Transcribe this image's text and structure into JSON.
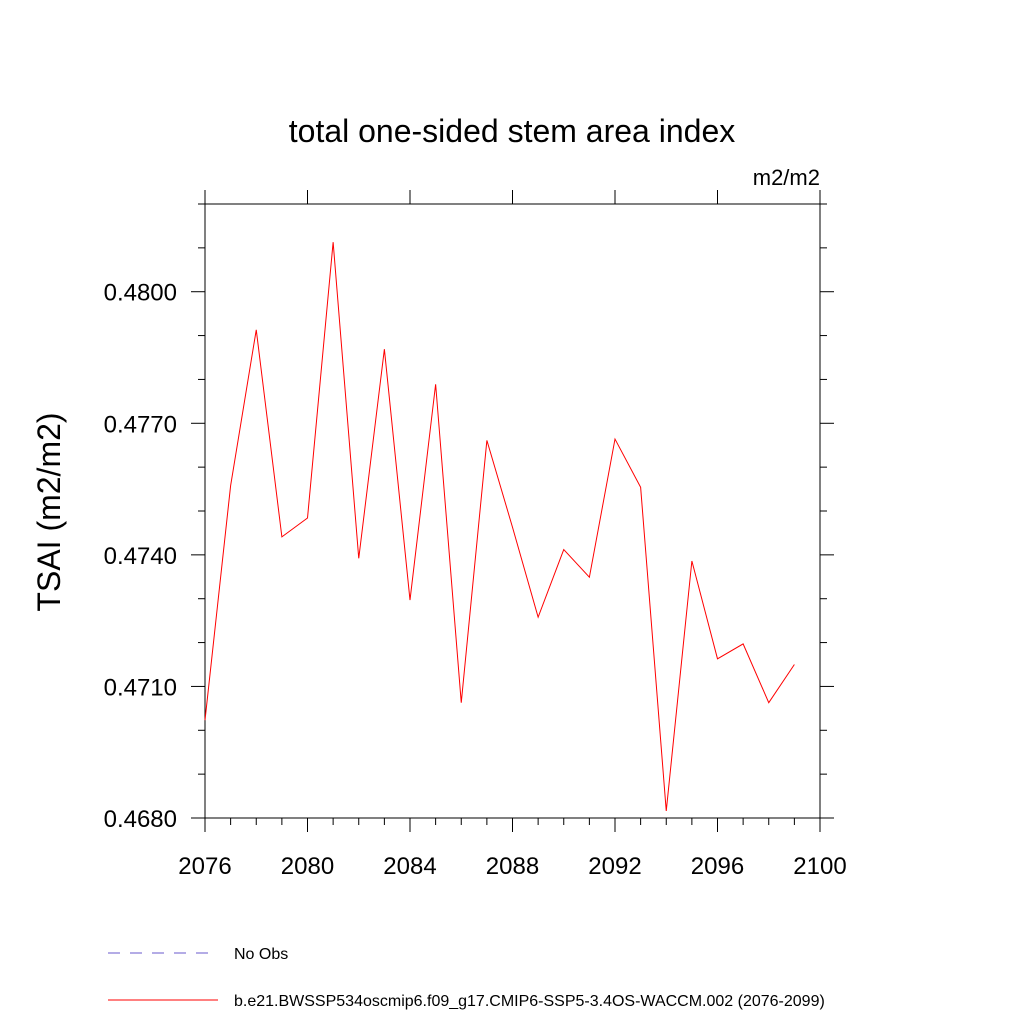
{
  "chart_data": {
    "type": "line",
    "title": "total one-sided stem area index",
    "units_label": "m2/m2",
    "ylabel": "TSAI  (m2/m2)",
    "xlabel": "",
    "xlim": [
      2076,
      2100
    ],
    "ylim": [
      0.468,
      0.482
    ],
    "x_major_ticks": [
      2076,
      2080,
      2084,
      2088,
      2092,
      2096,
      2100
    ],
    "x_tick_labels": [
      "2076",
      "2080",
      "2084",
      "2088",
      "2092",
      "2096",
      "2100"
    ],
    "y_major_ticks": [
      0.468,
      0.471,
      0.474,
      0.477,
      0.48
    ],
    "y_tick_labels": [
      "0.4680",
      "0.4710",
      "0.4740",
      "0.4770",
      "0.4800"
    ],
    "x": [
      2076,
      2077,
      2078,
      2079,
      2080,
      2081,
      2082,
      2083,
      2084,
      2085,
      2086,
      2087,
      2088,
      2089,
      2090,
      2091,
      2092,
      2093,
      2094,
      2095,
      2096,
      2097,
      2098,
      2099
    ],
    "series": [
      {
        "name": "b.e21.BWSSP534oscmip6.f09_g17.CMIP6-SSP5-3.4OS-WACCM.002 (2076-2099)",
        "color": "#ff0000",
        "values": [
          0.47023,
          0.47558,
          0.47913,
          0.47441,
          0.47484,
          0.48113,
          0.47392,
          0.47869,
          0.47297,
          0.47789,
          0.47063,
          0.47661,
          0.47463,
          0.47258,
          0.47412,
          0.47349,
          0.47664,
          0.47554,
          0.46816,
          0.47386,
          0.47163,
          0.47197,
          0.47063,
          0.4715
        ]
      }
    ],
    "legend": [
      {
        "label": "No Obs",
        "color": "#6a5acd",
        "style": "dashed"
      },
      {
        "label": "b.e21.BWSSP534oscmip6.f09_g17.CMIP6-SSP5-3.4OS-WACCM.002 (2076-2099)",
        "color": "#ff0000",
        "style": "solid"
      }
    ],
    "grid": false,
    "legend_position": "bottom"
  }
}
